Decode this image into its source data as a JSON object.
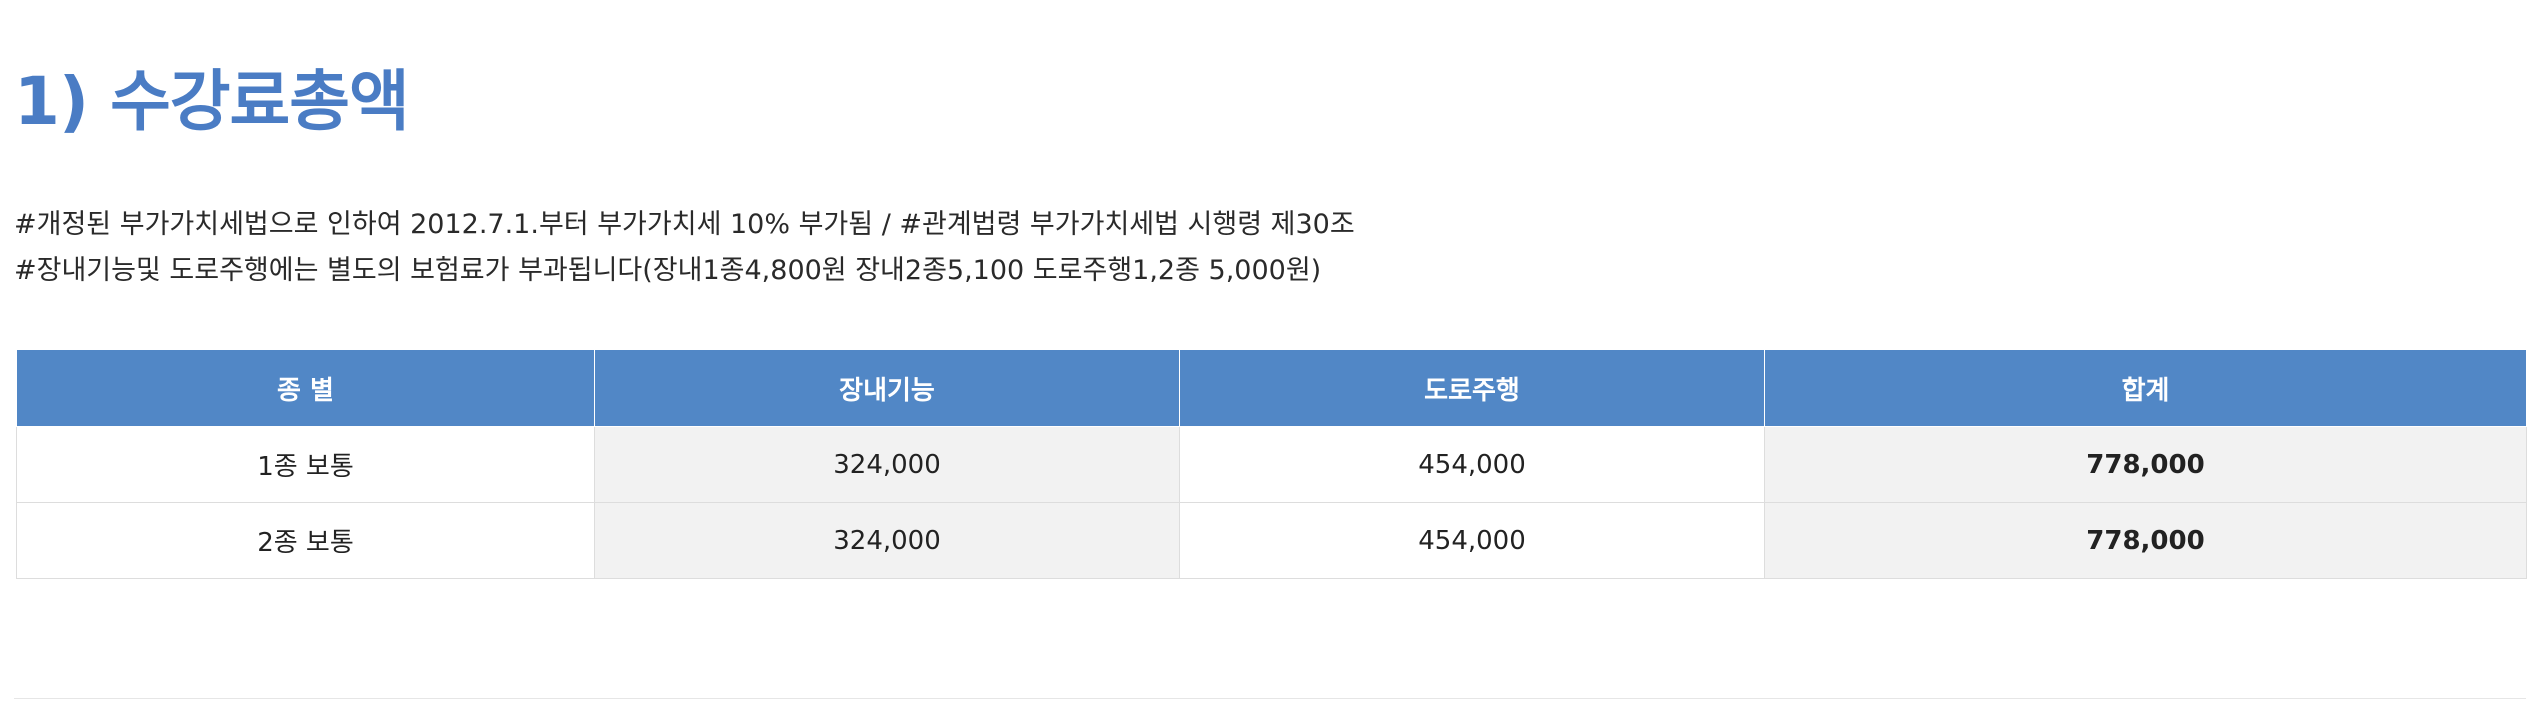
{
  "title": "1) 수강료총액",
  "notes": [
    "#개정된 부가가치세법으로 인하여 2012.7.1.부터 부가가치세 10% 부가됨 / #관계법령 부가가치세법 시행령 제30조",
    "#장내기능및 도로주행에는 별도의 보험료가 부과됩니다(장내1종4,800원 장내2종5,100  도로주행1,2종 5,000원)"
  ],
  "table": {
    "headers": [
      "종 별",
      "장내기능",
      "도로주행",
      "합계"
    ],
    "rows": [
      [
        "1종 보통",
        "324,000",
        "454,000",
        "778,000"
      ],
      [
        "2종 보통",
        "324,000",
        "454,000",
        "778,000"
      ]
    ]
  },
  "colors": {
    "title": "#4a7cc4",
    "header_bg": "#5187c6",
    "alt_cell_bg": "#f2f2f2"
  }
}
